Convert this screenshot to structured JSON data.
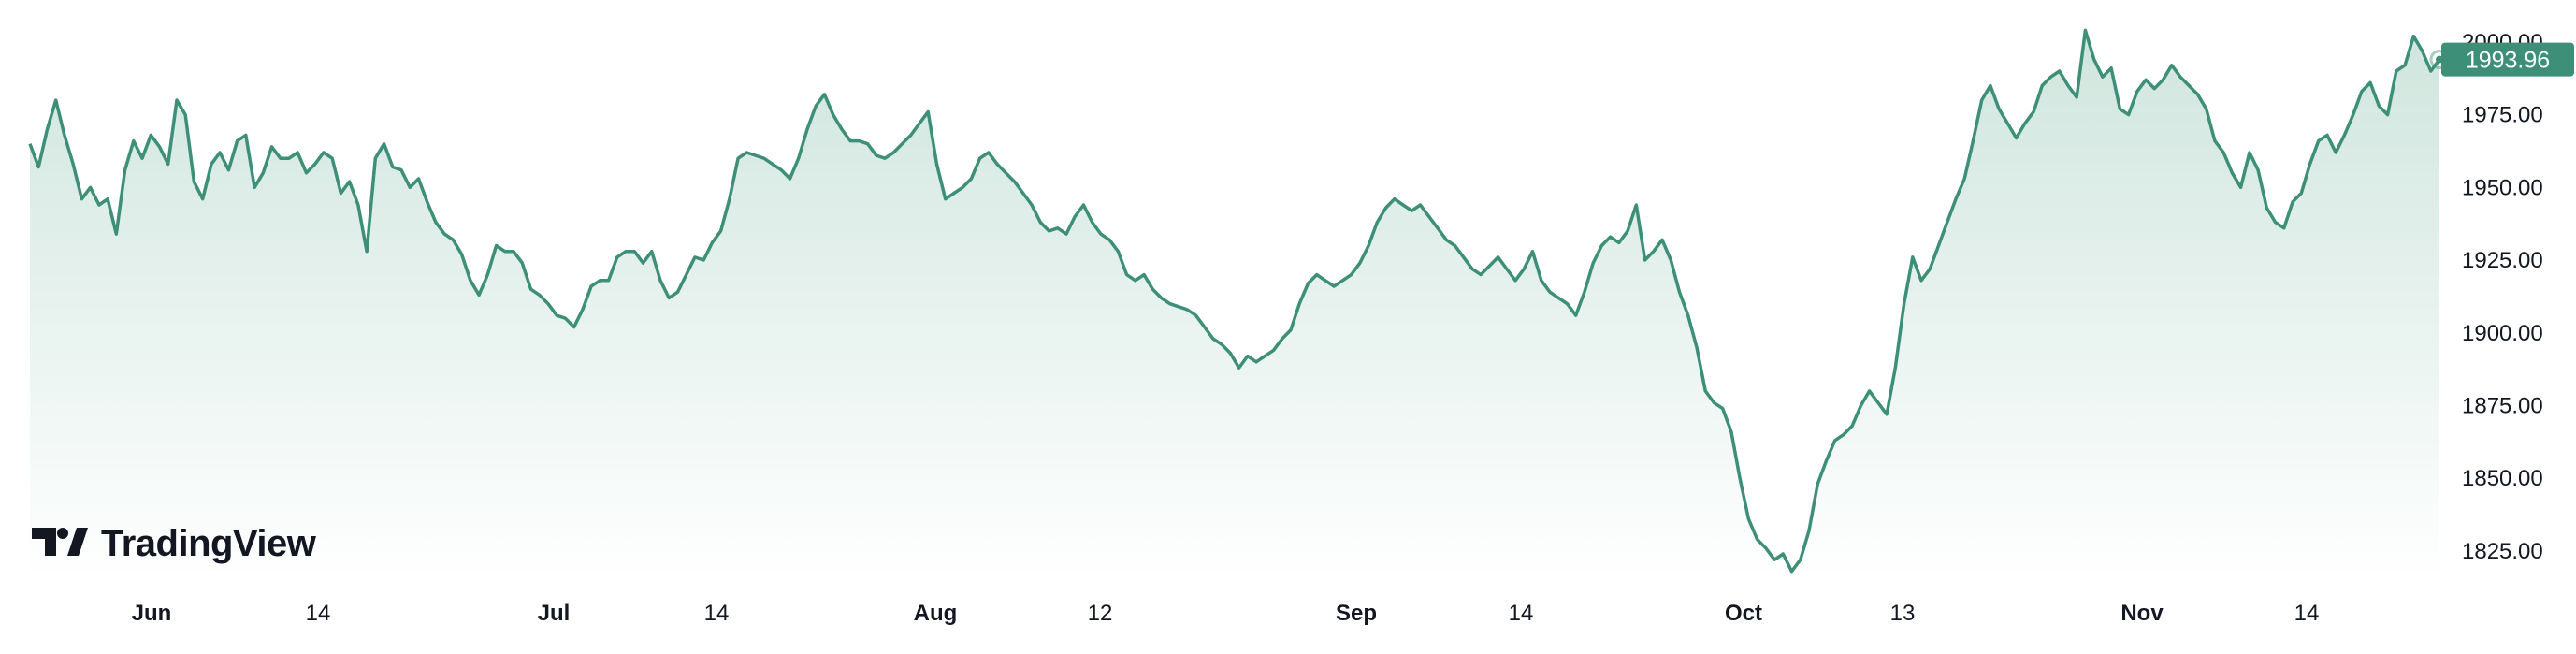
{
  "chart_data": {
    "type": "area",
    "y_axis": {
      "ylim": [
        1815,
        2008
      ],
      "ticks": [
        "1825.00",
        "1850.00",
        "1875.00",
        "1900.00",
        "1925.00",
        "1950.00",
        "1975.00",
        "2000.00"
      ],
      "position": "right"
    },
    "x_axis": {
      "ticks": [
        {
          "label": "Jun",
          "major": true
        },
        {
          "label": "14",
          "major": false
        },
        {
          "label": "Jul",
          "major": true
        },
        {
          "label": "14",
          "major": false
        },
        {
          "label": "Aug",
          "major": true
        },
        {
          "label": "12",
          "major": false
        },
        {
          "label": "Sep",
          "major": true
        },
        {
          "label": "14",
          "major": false
        },
        {
          "label": "Oct",
          "major": true
        },
        {
          "label": "13",
          "major": false
        },
        {
          "label": "Nov",
          "major": true
        },
        {
          "label": "14",
          "major": false
        }
      ]
    },
    "last_value_label": "1993.96",
    "colors": {
      "line": "#3d8f78",
      "fill_top": "#cfe5dd",
      "fill_bottom": "#ffffff",
      "badge": "#3d8f78",
      "badge_text": "#ffffff"
    },
    "grid": false,
    "series": [
      {
        "values": [
          1965,
          1957,
          1970,
          1980,
          1968,
          1958,
          1946,
          1950,
          1944,
          1946,
          1934,
          1956,
          1966,
          1960,
          1968,
          1964,
          1958,
          1980,
          1975,
          1952,
          1946,
          1958,
          1962,
          1956,
          1966,
          1968,
          1950,
          1955,
          1964,
          1960,
          1960,
          1962,
          1955,
          1958,
          1962,
          1960,
          1948,
          1952,
          1944,
          1928,
          1960,
          1965,
          1957,
          1956,
          1950,
          1953,
          1945,
          1938,
          1934,
          1932,
          1927,
          1918,
          1913,
          1920,
          1930,
          1928,
          1928,
          1924,
          1915,
          1913,
          1910,
          1906,
          1905,
          1902,
          1908,
          1916,
          1918,
          1918,
          1926,
          1928,
          1928,
          1924,
          1928,
          1918,
          1912,
          1914,
          1920,
          1926,
          1925,
          1931,
          1935,
          1946,
          1960,
          1962,
          1961,
          1960,
          1958,
          1956,
          1953,
          1960,
          1970,
          1978,
          1982,
          1975,
          1970,
          1966,
          1966,
          1965,
          1961,
          1960,
          1962,
          1965,
          1968,
          1972,
          1976,
          1958,
          1946,
          1948,
          1950,
          1953,
          1960,
          1962,
          1958,
          1955,
          1952,
          1948,
          1944,
          1938,
          1935,
          1936,
          1934,
          1940,
          1944,
          1938,
          1934,
          1932,
          1928,
          1920,
          1918,
          1920,
          1915,
          1912,
          1910,
          1909,
          1908,
          1906,
          1902,
          1898,
          1896,
          1893,
          1888,
          1892,
          1890,
          1892,
          1894,
          1898,
          1901,
          1910,
          1917,
          1920,
          1918,
          1916,
          1918,
          1920,
          1924,
          1930,
          1938,
          1943,
          1946,
          1944,
          1942,
          1944,
          1940,
          1936,
          1932,
          1930,
          1926,
          1922,
          1920,
          1923,
          1926,
          1922,
          1918,
          1922,
          1928,
          1918,
          1914,
          1912,
          1910,
          1906,
          1914,
          1924,
          1930,
          1933,
          1931,
          1935,
          1944,
          1925,
          1928,
          1932,
          1925,
          1914,
          1906,
          1895,
          1880,
          1876,
          1874,
          1866,
          1850,
          1836,
          1829,
          1826,
          1822,
          1824,
          1818,
          1822,
          1832,
          1848,
          1856,
          1863,
          1865,
          1868,
          1875,
          1880,
          1876,
          1872,
          1888,
          1910,
          1926,
          1918,
          1922,
          1930,
          1938,
          1946,
          1953,
          1966,
          1980,
          1985,
          1977,
          1972,
          1967,
          1972,
          1976,
          1985,
          1988,
          1990,
          1985,
          1981,
          2004,
          1994,
          1988,
          1991,
          1977,
          1975,
          1983,
          1987,
          1984,
          1987,
          1992,
          1988,
          1985,
          1982,
          1977,
          1966,
          1962,
          1955,
          1950,
          1962,
          1956,
          1943,
          1938,
          1936,
          1945,
          1948,
          1958,
          1966,
          1968,
          1962,
          1968,
          1975,
          1983,
          1986,
          1978,
          1975,
          1990,
          1992,
          2002,
          1997,
          1990,
          1993.96
        ]
      }
    ]
  },
  "watermark": {
    "text": "TradingView"
  }
}
